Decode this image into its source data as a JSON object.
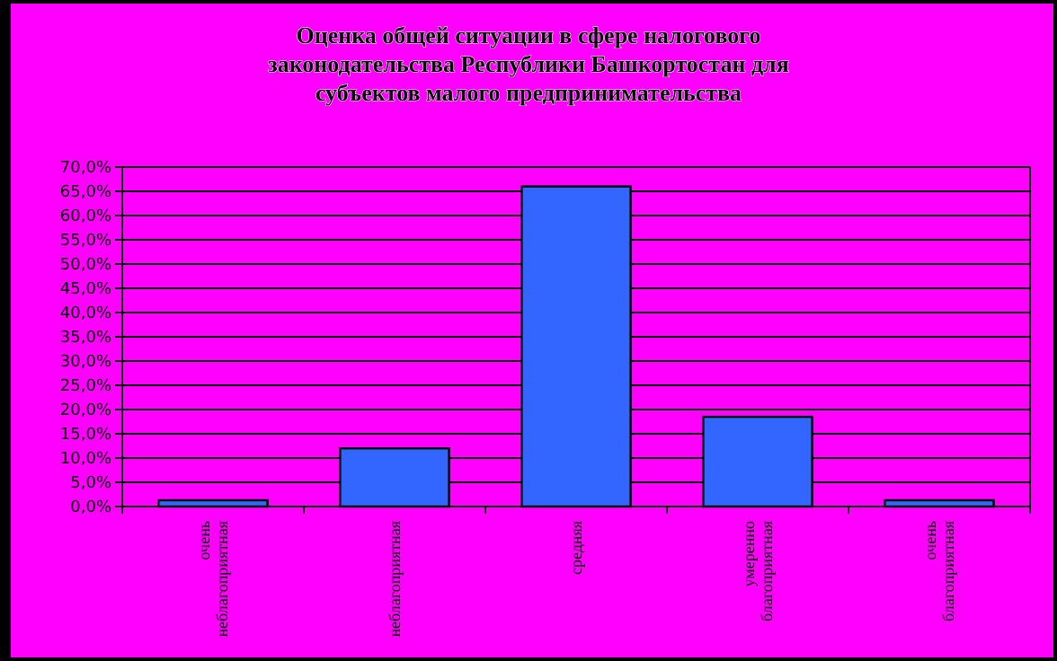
{
  "chart_data": {
    "type": "bar",
    "title": "Оценка общей ситуации в сфере налогового законодательства Республики Башкортостан для субъектов малого предпринимательства",
    "categories": [
      "очень неблагоприятная",
      "неблагоприятная",
      "средняя",
      "умеренно благоприятная",
      "очень благоприятная"
    ],
    "values": [
      1.3,
      12,
      66,
      18.5,
      1.3
    ],
    "color": "#3366ff",
    "ylim": [
      0,
      70
    ],
    "yticks": [
      {
        "value": 0,
        "label": "0,0%"
      },
      {
        "value": 5,
        "label": "5,0%"
      },
      {
        "value": 10,
        "label": "10,0%"
      },
      {
        "value": 15,
        "label": "15,0%"
      },
      {
        "value": 20,
        "label": "20,0%"
      },
      {
        "value": 25,
        "label": "25,0%"
      },
      {
        "value": 30,
        "label": "30,0%"
      },
      {
        "value": 35,
        "label": "35,0%"
      },
      {
        "value": 40,
        "label": "40,0%"
      },
      {
        "value": 45,
        "label": "45,0%"
      },
      {
        "value": 50,
        "label": "50,0%"
      },
      {
        "value": 55,
        "label": "55,0%"
      },
      {
        "value": 60,
        "label": "60,0%"
      },
      {
        "value": 65,
        "label": "65,0%"
      },
      {
        "value": 70,
        "label": "70,0%"
      }
    ],
    "grid": "y"
  }
}
